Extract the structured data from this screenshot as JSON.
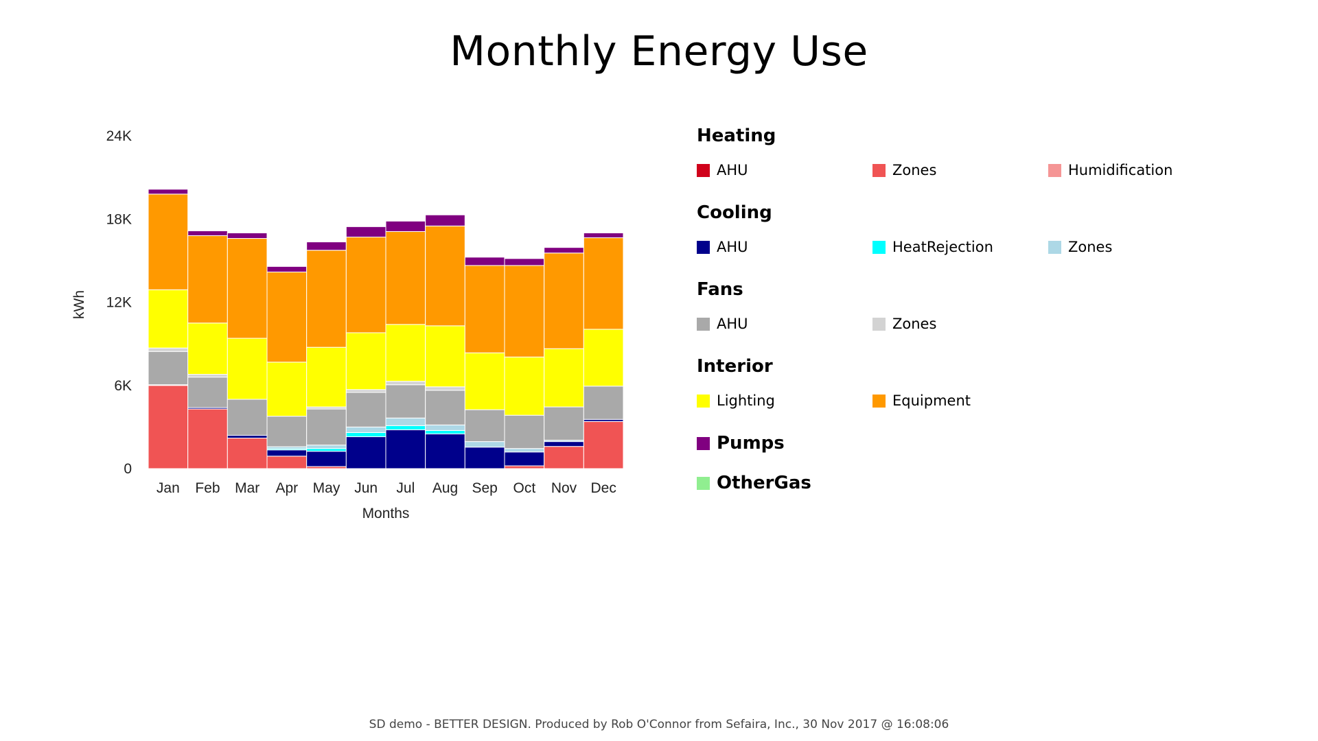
{
  "chart_data": {
    "type": "bar",
    "stacked": true,
    "title": "Monthly Energy Use",
    "xlabel": "Months",
    "ylabel": "kWh",
    "ylim": [
      0,
      24000
    ],
    "yticks": [
      0,
      6000,
      12000,
      18000,
      24000
    ],
    "ytick_labels": [
      "0",
      "6K",
      "12K",
      "18K",
      "24K"
    ],
    "categories": [
      "Jan",
      "Feb",
      "Mar",
      "Apr",
      "May",
      "Jun",
      "Jul",
      "Aug",
      "Sep",
      "Oct",
      "Nov",
      "Dec"
    ],
    "series": [
      {
        "key": "heat_ahu",
        "name": "Heating AHU",
        "color": "#d0021b",
        "values": [
          0,
          0,
          0,
          0,
          0,
          0,
          0,
          0,
          0,
          0,
          0,
          0
        ]
      },
      {
        "key": "heat_zones",
        "name": "Heating Zones",
        "color": "#f05454",
        "values": [
          6000,
          4300,
          2200,
          900,
          150,
          0,
          0,
          0,
          0,
          200,
          1600,
          3400
        ]
      },
      {
        "key": "heat_humid",
        "name": "Heating Humidification",
        "color": "#f59595",
        "values": [
          0,
          0,
          0,
          0,
          0,
          0,
          0,
          0,
          0,
          0,
          0,
          0
        ]
      },
      {
        "key": "cool_ahu",
        "name": "Cooling AHU",
        "color": "#00008b",
        "values": [
          50,
          100,
          200,
          450,
          1100,
          2300,
          2800,
          2500,
          1550,
          1000,
          350,
          150
        ]
      },
      {
        "key": "cool_hr",
        "name": "Cooling HeatRejection",
        "color": "#00ffff",
        "values": [
          0,
          0,
          0,
          80,
          200,
          300,
          300,
          250,
          0,
          0,
          0,
          0
        ]
      },
      {
        "key": "cool_zones",
        "name": "Cooling Zones",
        "color": "#add8e6",
        "values": [
          0,
          0,
          0,
          150,
          250,
          400,
          550,
          400,
          400,
          250,
          100,
          0
        ]
      },
      {
        "key": "fans_ahu",
        "name": "Fans AHU",
        "color": "#a9a9a9",
        "values": [
          2400,
          2200,
          2600,
          2200,
          2600,
          2500,
          2400,
          2500,
          2300,
          2400,
          2400,
          2400
        ]
      },
      {
        "key": "fans_zones",
        "name": "Fans Zones",
        "color": "#d3d3d3",
        "values": [
          250,
          200,
          0,
          0,
          150,
          200,
          250,
          250,
          0,
          0,
          0,
          0
        ]
      },
      {
        "key": "lighting",
        "name": "Interior Lighting",
        "color": "#ffff00",
        "values": [
          4200,
          3700,
          4400,
          3900,
          4300,
          4100,
          4100,
          4400,
          4100,
          4200,
          4200,
          4100
        ]
      },
      {
        "key": "equipment",
        "name": "Interior Equipment",
        "color": "#ff9900",
        "values": [
          6900,
          6300,
          7200,
          6500,
          7000,
          6900,
          6700,
          7200,
          6300,
          6600,
          6900,
          6600
        ]
      },
      {
        "key": "pumps",
        "name": "Pumps",
        "color": "#800080",
        "values": [
          350,
          350,
          400,
          400,
          600,
          750,
          750,
          800,
          600,
          500,
          400,
          350
        ]
      },
      {
        "key": "othergas",
        "name": "OtherGas",
        "color": "#90ee90",
        "values": [
          0,
          0,
          0,
          0,
          0,
          0,
          0,
          0,
          0,
          0,
          0,
          0
        ]
      }
    ]
  },
  "legend": {
    "groups": [
      {
        "title": "Heating",
        "items": [
          {
            "label": "AHU",
            "color": "#d0021b"
          },
          {
            "label": "Zones",
            "color": "#f05454"
          },
          {
            "label": "Humidification",
            "color": "#f59595"
          }
        ]
      },
      {
        "title": "Cooling",
        "items": [
          {
            "label": "AHU",
            "color": "#00008b"
          },
          {
            "label": "HeatRejection",
            "color": "#00ffff"
          },
          {
            "label": "Zones",
            "color": "#add8e6"
          }
        ]
      },
      {
        "title": "Fans",
        "items": [
          {
            "label": "AHU",
            "color": "#a9a9a9"
          },
          {
            "label": "Zones",
            "color": "#d3d3d3"
          }
        ]
      },
      {
        "title": "Interior",
        "items": [
          {
            "label": "Lighting",
            "color": "#ffff00"
          },
          {
            "label": "Equipment",
            "color": "#ff9900"
          }
        ]
      }
    ],
    "singles": [
      {
        "label": "Pumps",
        "color": "#800080"
      },
      {
        "label": "OtherGas",
        "color": "#90ee90"
      }
    ]
  },
  "footer": "SD demo - BETTER DESIGN. Produced by Rob O'Connor from Sefaira, Inc., 30 Nov 2017 @ 16:08:06"
}
